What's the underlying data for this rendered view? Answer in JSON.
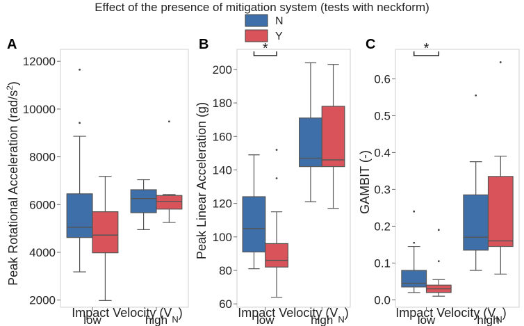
{
  "figure": {
    "title": "Effect of the presence of mitigation system (tests with neckform)"
  },
  "legend": {
    "items": [
      {
        "label": "N",
        "color": "#3e6fa8"
      },
      {
        "label": "Y",
        "color": "#d9535b"
      }
    ]
  },
  "chart_data": [
    {
      "type": "box",
      "panel": "A",
      "title": "",
      "xlabel_main": "Impact Velocity (V",
      "xlabel_sub": "N",
      "xlabel_close": ")",
      "ylabel_main": "Peak Rotational Acceleration (rad/s",
      "ylabel_sup": "2",
      "ylabel_close": ")",
      "categories": [
        "low",
        "high"
      ],
      "ylim": [
        1700,
        12500
      ],
      "yticks": [
        {
          "v": 2000,
          "t": "2000"
        },
        {
          "v": 4000,
          "t": "4000"
        },
        {
          "v": 6000,
          "t": "6000"
        },
        {
          "v": 8000,
          "t": "8000"
        },
        {
          "v": 10000,
          "t": "10000"
        },
        {
          "v": 12000,
          "t": "12000"
        }
      ],
      "series": [
        {
          "name": "N",
          "boxes": [
            {
              "whislo": 3180,
              "q1": 4620,
              "med": 5050,
              "q3": 6450,
              "whishi": 8860,
              "fliers": [
                9420,
                11650
              ]
            },
            {
              "whislo": 4950,
              "q1": 5660,
              "med": 6250,
              "q3": 6620,
              "whishi": 7040,
              "fliers": []
            }
          ]
        },
        {
          "name": "Y",
          "boxes": [
            {
              "whislo": 1980,
              "q1": 3980,
              "med": 4720,
              "q3": 5700,
              "whishi": 7180,
              "fliers": []
            },
            {
              "whislo": 5250,
              "q1": 5810,
              "med": 6130,
              "q3": 6380,
              "whishi": 6420,
              "fliers": [
                9480
              ]
            }
          ]
        }
      ],
      "significance": []
    },
    {
      "type": "box",
      "panel": "B",
      "title": "",
      "xlabel_main": "Impact Velocity (V",
      "xlabel_sub": "N",
      "xlabel_close": ")",
      "ylabel_main": "Peak Linear Acceleration (g)",
      "ylabel_sup": "",
      "ylabel_close": "",
      "categories": [
        "low",
        "high"
      ],
      "ylim": [
        58,
        212
      ],
      "yticks": [
        {
          "v": 60,
          "t": "60"
        },
        {
          "v": 80,
          "t": "80"
        },
        {
          "v": 100,
          "t": "100"
        },
        {
          "v": 120,
          "t": "120"
        },
        {
          "v": 140,
          "t": "140"
        },
        {
          "v": 160,
          "t": "160"
        },
        {
          "v": 180,
          "t": "180"
        },
        {
          "v": 200,
          "t": "200"
        }
      ],
      "series": [
        {
          "name": "N",
          "boxes": [
            {
              "whislo": 81,
              "q1": 91,
              "med": 105,
              "q3": 124,
              "whishi": 149,
              "fliers": []
            },
            {
              "whislo": 121,
              "q1": 142,
              "med": 147,
              "q3": 171,
              "whishi": 204,
              "fliers": []
            }
          ]
        },
        {
          "name": "Y",
          "boxes": [
            {
              "whislo": 64,
              "q1": 82,
              "med": 86,
              "q3": 96,
              "whishi": 115,
              "fliers": [
                135,
                152
              ]
            },
            {
              "whislo": 117,
              "q1": 142,
              "med": 146,
              "q3": 178,
              "whishi": 203,
              "fliers": []
            }
          ]
        }
      ],
      "significance": [
        {
          "category": "low",
          "label": "*"
        }
      ]
    },
    {
      "type": "box",
      "panel": "C",
      "title": "",
      "xlabel_main": "Impact Velocity (V",
      "xlabel_sub": "N",
      "xlabel_close": ")",
      "ylabel_main": "GAMBIT (-)",
      "ylabel_sup": "",
      "ylabel_close": "",
      "categories": [
        "low",
        "high"
      ],
      "ylim": [
        -0.02,
        0.68
      ],
      "yticks": [
        {
          "v": 0.0,
          "t": "0.0"
        },
        {
          "v": 0.1,
          "t": "0.1"
        },
        {
          "v": 0.2,
          "t": "0.2"
        },
        {
          "v": 0.3,
          "t": "0.3"
        },
        {
          "v": 0.4,
          "t": "0.4"
        },
        {
          "v": 0.5,
          "t": "0.5"
        },
        {
          "v": 0.6,
          "t": "0.6"
        }
      ],
      "series": [
        {
          "name": "N",
          "boxes": [
            {
              "whislo": 0.02,
              "q1": 0.035,
              "med": 0.045,
              "q3": 0.08,
              "whishi": 0.145,
              "fliers": [
                0.155,
                0.24
              ]
            },
            {
              "whislo": 0.08,
              "q1": 0.135,
              "med": 0.17,
              "q3": 0.285,
              "whishi": 0.375,
              "fliers": [
                0.555
              ]
            }
          ]
        },
        {
          "name": "Y",
          "boxes": [
            {
              "whislo": 0.01,
              "q1": 0.02,
              "med": 0.03,
              "q3": 0.04,
              "whishi": 0.055,
              "fliers": [
                0.105,
                0.19
              ]
            },
            {
              "whislo": 0.07,
              "q1": 0.145,
              "med": 0.16,
              "q3": 0.335,
              "whishi": 0.39,
              "fliers": [
                0.645
              ]
            }
          ]
        }
      ],
      "significance": [
        {
          "category": "low",
          "label": "*"
        }
      ]
    }
  ]
}
